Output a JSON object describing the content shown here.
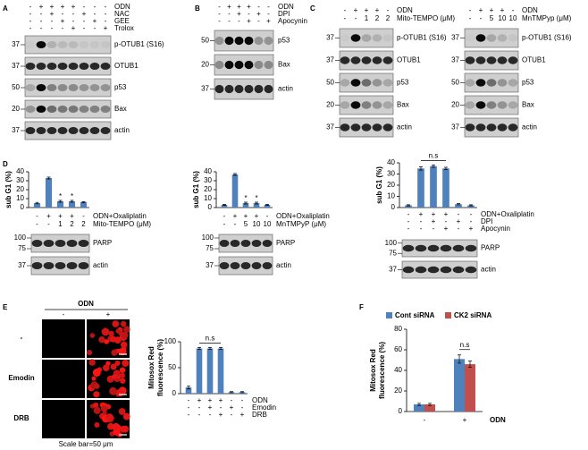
{
  "figure": {
    "A": {
      "label": "A",
      "conditions": [
        {
          "name": "ODN",
          "signs": [
            "-",
            "+",
            "+",
            "+",
            "+",
            "-",
            "-",
            "-"
          ]
        },
        {
          "name": "NAC",
          "signs": [
            "-",
            "-",
            "+",
            "-",
            "-",
            "+",
            "-",
            "-"
          ]
        },
        {
          "name": "GEE",
          "signs": [
            "-",
            "-",
            "-",
            "+",
            "-",
            "-",
            "+",
            "-"
          ]
        },
        {
          "name": "Trolox",
          "signs": [
            "-",
            "-",
            "-",
            "-",
            "+",
            "-",
            "-",
            "+"
          ]
        }
      ],
      "blots": [
        {
          "name": "p-OTUB1 (S16)",
          "mw": [
            37
          ]
        },
        {
          "name": "OTUB1",
          "mw": [
            37
          ]
        },
        {
          "name": "p53",
          "mw": [
            50
          ]
        },
        {
          "name": "Bax",
          "mw": [
            20
          ]
        },
        {
          "name": "actin",
          "mw": [
            37
          ]
        }
      ]
    },
    "B": {
      "label": "B",
      "conditions": [
        {
          "name": "ODN",
          "signs": [
            "-",
            "+",
            "+",
            "+",
            "-",
            "-"
          ]
        },
        {
          "name": "DPI",
          "signs": [
            "-",
            "-",
            "+",
            "-",
            "+",
            "-"
          ]
        },
        {
          "name": "Apocynin",
          "signs": [
            "-",
            "-",
            "-",
            "+",
            "-",
            "+"
          ]
        }
      ],
      "blots": [
        {
          "name": "p53",
          "mw": [
            50
          ]
        },
        {
          "name": "Bax",
          "mw": [
            20
          ]
        },
        {
          "name": "actin",
          "mw": [
            37
          ]
        }
      ]
    },
    "C": {
      "label": "C",
      "left": {
        "conditions": [
          {
            "name": "ODN",
            "signs": [
              "-",
              "+",
              "+",
              "+",
              "-"
            ]
          },
          {
            "name": "Mito-TEMPO (μM)",
            "signs": [
              "-",
              "-",
              "1",
              "2",
              "2"
            ]
          }
        ],
        "blots": [
          {
            "name": "p-OTUB1 (S16)",
            "mw": [
              37
            ]
          },
          {
            "name": "OTUB1",
            "mw": [
              37
            ]
          },
          {
            "name": "p53",
            "mw": [
              50
            ]
          },
          {
            "name": "Bax",
            "mw": [
              20
            ]
          },
          {
            "name": "actin",
            "mw": [
              37
            ]
          }
        ]
      },
      "right": {
        "conditions": [
          {
            "name": "ODN",
            "signs": [
              "-",
              "+",
              "+",
              "+",
              "-"
            ]
          },
          {
            "name": "MnTMPyp (μM)",
            "signs": [
              "-",
              "-",
              "5",
              "10",
              "10"
            ]
          }
        ],
        "blots": [
          {
            "name": "p-OTUB1 (S16)",
            "mw": [
              37
            ]
          },
          {
            "name": "OTUB1",
            "mw": [
              37
            ]
          },
          {
            "name": "p53",
            "mw": [
              50
            ]
          },
          {
            "name": "Bax",
            "mw": [
              20
            ]
          },
          {
            "name": "actin",
            "mw": [
              37
            ]
          }
        ]
      }
    },
    "D": {
      "label": "D",
      "charts": [
        {
          "chart_data": {
            "type": "bar",
            "ylabel": "sub G1 (%)",
            "ylim": [
              0,
              40
            ],
            "yticks": [
              0,
              10,
              20,
              30,
              40
            ],
            "color": "#4f81bd",
            "values": [
              5,
              33,
              7,
              7,
              6
            ],
            "errors": [
              0.8,
              1,
              1,
              1,
              0.5
            ],
            "significance": [
              null,
              null,
              "*",
              "*",
              null
            ]
          },
          "conditions": [
            {
              "name": "ODN+Oxaliplatin",
              "signs": [
                "-",
                "+",
                "+",
                "+",
                "-"
              ]
            },
            {
              "name": "Mito-TEMPO (μM)",
              "signs": [
                "-",
                "-",
                "1",
                "2",
                "2"
              ]
            }
          ],
          "blots": [
            {
              "name": "PARP",
              "mw": [
                100,
                75
              ]
            },
            {
              "name": "actin",
              "mw": [
                37
              ]
            }
          ]
        },
        {
          "chart_data": {
            "type": "bar",
            "ylabel": "sub G1 (%)",
            "ylim": [
              0,
              40
            ],
            "yticks": [
              0,
              10,
              20,
              30,
              40
            ],
            "color": "#4f81bd",
            "values": [
              3,
              37,
              5,
              5,
              3
            ],
            "errors": [
              0.5,
              1,
              1,
              1,
              0.5
            ],
            "significance": [
              null,
              null,
              "*",
              "*",
              null
            ]
          },
          "conditions": [
            {
              "name": "ODN+Oxaliplatin",
              "signs": [
                "-",
                "+",
                "+",
                "+",
                "-"
              ]
            },
            {
              "name": "MnTMPyP (μM)",
              "signs": [
                "-",
                "-",
                "5",
                "10",
                "10"
              ]
            }
          ],
          "blots": [
            {
              "name": "PARP",
              "mw": [
                100,
                75
              ]
            },
            {
              "name": "actin",
              "mw": [
                37
              ]
            }
          ]
        },
        {
          "chart_data": {
            "type": "bar",
            "ylabel": "sub G1 (%)",
            "ylim": [
              0,
              40
            ],
            "yticks": [
              0,
              10,
              20,
              30,
              40
            ],
            "color": "#4f81bd",
            "values": [
              2,
              35,
              37,
              35,
              3,
              2
            ],
            "errors": [
              0.5,
              1.5,
              1,
              1,
              0.5,
              0.5
            ],
            "bracket": "n.s"
          },
          "conditions": [
            {
              "name": "ODN+Oxaliplatin",
              "signs": [
                "-",
                "+",
                "+",
                "+",
                "-",
                "-"
              ]
            },
            {
              "name": "DPI",
              "signs": [
                "-",
                "-",
                "+",
                "-",
                "+",
                "-"
              ]
            },
            {
              "name": "Apocynin",
              "signs": [
                "-",
                "-",
                "-",
                "+",
                "-",
                "+"
              ]
            }
          ],
          "blots": [
            {
              "name": "PARP",
              "mw": [
                100,
                75
              ]
            },
            {
              "name": "actin",
              "mw": [
                37
              ]
            }
          ]
        }
      ]
    },
    "E": {
      "label": "E",
      "images": {
        "column_title": "ODN",
        "columns": [
          "-",
          "+"
        ],
        "rows": [
          "-",
          "Emodin",
          "DRB"
        ],
        "scale_bar": "Scale bar=50 μm"
      },
      "chart_data": {
        "type": "bar",
        "ylabel": [
          "Mitosox Red",
          "fluorescence (%)"
        ],
        "ylim": [
          0,
          100
        ],
        "yticks": [
          0,
          50,
          100
        ],
        "color": "#4f81bd",
        "values": [
          12,
          87,
          87,
          87,
          3,
          3
        ],
        "errors": [
          3,
          2,
          2,
          2,
          1,
          1
        ],
        "bracket": "n.s"
      },
      "conditions": [
        {
          "name": "ODN",
          "signs": [
            "-",
            "+",
            "+",
            "+",
            "-",
            "-"
          ]
        },
        {
          "name": "Emodin",
          "signs": [
            "-",
            "-",
            "+",
            "-",
            "+",
            "-"
          ]
        },
        {
          "name": "DRB",
          "signs": [
            "-",
            "-",
            "-",
            "+",
            "-",
            "+"
          ]
        }
      ]
    },
    "F": {
      "label": "F",
      "chart_data": {
        "type": "grouped-bar",
        "ylabel": [
          "Mitosox Red",
          "fluorescence (%)"
        ],
        "ylim": [
          0,
          80
        ],
        "yticks": [
          0,
          20,
          40,
          60,
          80
        ],
        "categories": [
          "-",
          "+"
        ],
        "xlabel": "ODN",
        "bracket": "n.s",
        "series": [
          {
            "name": "Cont siRNA",
            "color": "#4f81bd",
            "values": [
              7,
              51
            ],
            "errors": [
              1,
              4
            ]
          },
          {
            "name": "CK2 siRNA",
            "color": "#c0504d",
            "values": [
              7,
              46
            ],
            "errors": [
              1,
              3
            ]
          }
        ]
      }
    }
  }
}
